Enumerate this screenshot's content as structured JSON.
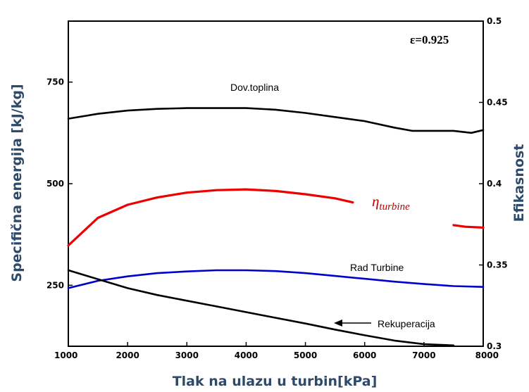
{
  "chart_data": {
    "type": "line",
    "xlabel": "Tlak na ulazu u turbin[kPa]",
    "ylabel_left": "Specifična energija [kJ/kg]",
    "ylabel_right": "Efikasnost",
    "xlim": [
      1000,
      8000
    ],
    "ylim_left": [
      100,
      900
    ],
    "ylim_right": [
      0.3,
      0.5
    ],
    "xticks": [
      "1000",
      "2000",
      "3000",
      "4000",
      "5000",
      "6000",
      "7000",
      "8000"
    ],
    "yticks_left": [
      {
        "value": 250,
        "label": "250"
      },
      {
        "value": 500,
        "label": "500"
      },
      {
        "value": 750,
        "label": "750"
      }
    ],
    "yticks_right": [
      {
        "value": 0.3,
        "label": "0.3"
      },
      {
        "value": 0.35,
        "label": "0.35"
      },
      {
        "value": 0.4,
        "label": "0.4"
      },
      {
        "value": 0.45,
        "label": "0.45"
      },
      {
        "value": 0.5,
        "label": "0.5"
      }
    ],
    "epsilon_label": "ε=0.925",
    "series": [
      {
        "name": "Dov.toplina",
        "axis": "left",
        "color": "#000000",
        "x": [
          1000,
          1500,
          2000,
          2500,
          3000,
          3500,
          4000,
          4500,
          5000,
          5500,
          6000,
          6500,
          6800,
          7000,
          7500,
          7800,
          8000
        ],
        "y": [
          660,
          672,
          680,
          684,
          686,
          686,
          686,
          682,
          674,
          664,
          654,
          638,
          630,
          630,
          630,
          625,
          632
        ]
      },
      {
        "name": "Rad Turbine",
        "axis": "left",
        "color": "#0000cc",
        "x": [
          1000,
          1500,
          2000,
          2500,
          3000,
          3500,
          4000,
          4500,
          5000,
          5500,
          6000,
          6500,
          7000,
          7500,
          8000
        ],
        "y": [
          243,
          261,
          272,
          280,
          284,
          287,
          287,
          285,
          280,
          273,
          266,
          259,
          253,
          248,
          246
        ]
      },
      {
        "name": "Rekuperacija",
        "axis": "left",
        "color": "#000000",
        "x": [
          1000,
          1500,
          2000,
          2500,
          3000,
          3500,
          4000,
          4500,
          5000,
          5500,
          6000,
          6500,
          7000,
          7500
        ],
        "y": [
          287,
          265,
          243,
          226,
          212,
          198,
          184,
          170,
          156,
          141,
          127,
          114,
          105,
          102
        ]
      },
      {
        "name": "η_turbine",
        "axis": "right",
        "color": "#ee0000",
        "segments": [
          {
            "x": [
              1000,
              1500,
              2000,
              2500,
              3000,
              3500,
              4000,
              4500,
              5000,
              5500,
              5800
            ],
            "y": [
              0.362,
              0.379,
              0.387,
              0.3915,
              0.3945,
              0.396,
              0.3965,
              0.3955,
              0.3935,
              0.391,
              0.3885
            ]
          },
          {
            "x": [
              7500,
              7700,
              8000
            ],
            "y": [
              0.3745,
              0.3735,
              0.373
            ]
          }
        ]
      }
    ],
    "annotations": {
      "dov": "Dov.toplina",
      "rad": "Rad Turbine",
      "rek": "Rekuperacija",
      "eta_main": "η",
      "eta_sub": "turbine"
    }
  }
}
